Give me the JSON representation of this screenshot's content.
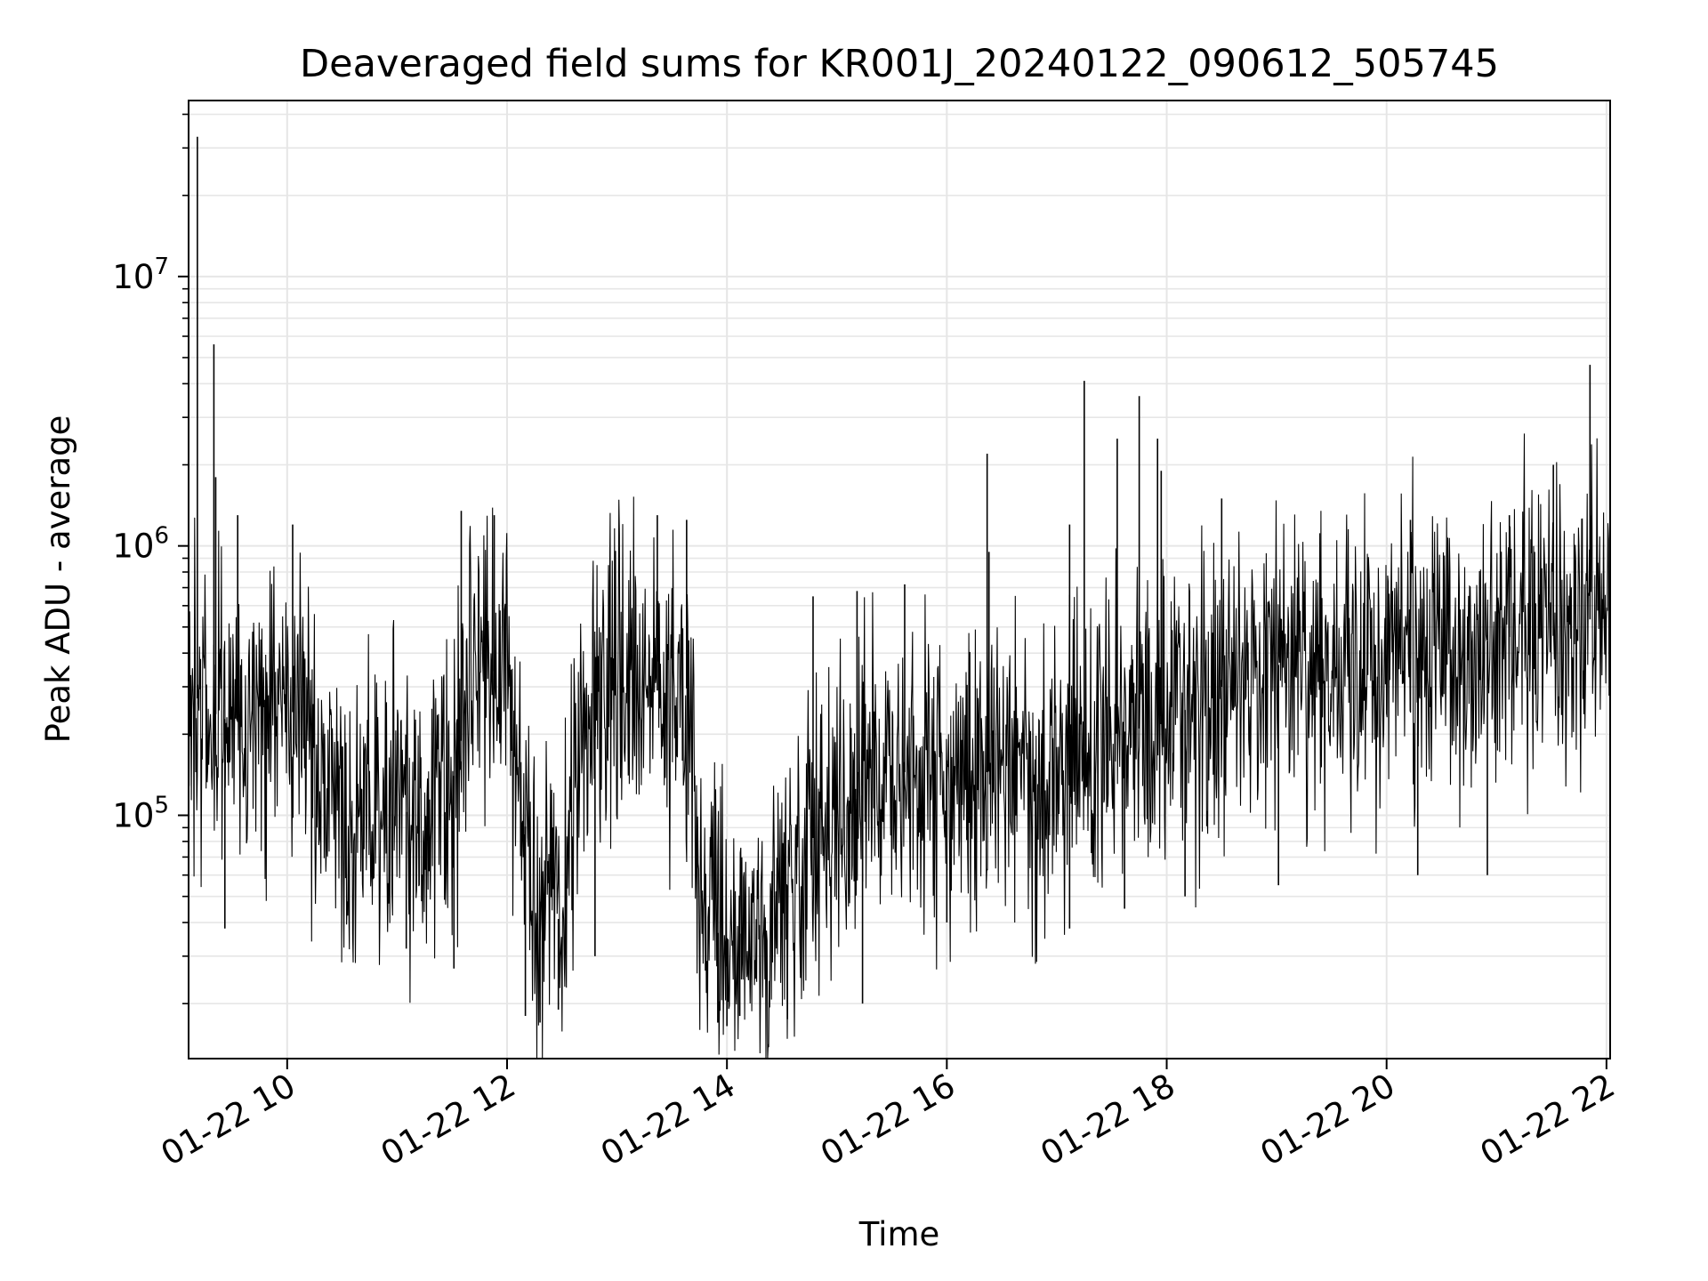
{
  "chart_data": {
    "type": "line",
    "title": "Deaveraged field sums for KR001J_20240122_090612_505745",
    "xlabel": "Time",
    "ylabel": "Peak ADU - average",
    "yscale": "log",
    "grid": true,
    "grid_minor": true,
    "line_color": "#000000",
    "grid_color": "#e6e6e6",
    "xlim": [
      "2024-01-22T09:06:12",
      "2024-01-22T22:02:00"
    ],
    "ylim": [
      12500,
      45000000
    ],
    "x_ticks": [
      {
        "value": "2024-01-22T10:00:00",
        "label": "01-22 10"
      },
      {
        "value": "2024-01-22T12:00:00",
        "label": "01-22 12"
      },
      {
        "value": "2024-01-22T14:00:00",
        "label": "01-22 14"
      },
      {
        "value": "2024-01-22T16:00:00",
        "label": "01-22 16"
      },
      {
        "value": "2024-01-22T18:00:00",
        "label": "01-22 18"
      },
      {
        "value": "2024-01-22T20:00:00",
        "label": "01-22 20"
      },
      {
        "value": "2024-01-22T22:00:00",
        "label": "01-22 22"
      }
    ],
    "y_ticks": [
      {
        "value": 100000,
        "base": "10",
        "exp": "5"
      },
      {
        "value": 1000000,
        "base": "10",
        "exp": "6"
      },
      {
        "value": 10000000,
        "base": "10",
        "exp": "7"
      }
    ],
    "series": [
      {
        "x": [
          "2024-01-22T09:06:12",
          "2024-01-22T09:15:00",
          "2024-01-22T09:30:00",
          "2024-01-22T09:45:00",
          "2024-01-22T10:00:00",
          "2024-01-22T10:15:00",
          "2024-01-22T10:30:00",
          "2024-01-22T10:45:00",
          "2024-01-22T11:00:00",
          "2024-01-22T11:15:00",
          "2024-01-22T11:30:00",
          "2024-01-22T11:45:00",
          "2024-01-22T12:00:00",
          "2024-01-22T12:15:00",
          "2024-01-22T12:30:00",
          "2024-01-22T12:45:00",
          "2024-01-22T13:00:00",
          "2024-01-22T13:15:00",
          "2024-01-22T13:30:00",
          "2024-01-22T13:40:00",
          "2024-01-22T13:45:00",
          "2024-01-22T14:00:00",
          "2024-01-22T14:15:00",
          "2024-01-22T14:30:00",
          "2024-01-22T14:45:00",
          "2024-01-22T15:00:00",
          "2024-01-22T15:15:00",
          "2024-01-22T15:30:00",
          "2024-01-22T15:45:00",
          "2024-01-22T16:00:00",
          "2024-01-22T16:15:00",
          "2024-01-22T16:30:00",
          "2024-01-22T16:45:00",
          "2024-01-22T17:00:00",
          "2024-01-22T17:15:00",
          "2024-01-22T17:30:00",
          "2024-01-22T17:45:00",
          "2024-01-22T18:00:00",
          "2024-01-22T18:15:00",
          "2024-01-22T18:30:00",
          "2024-01-22T18:45:00",
          "2024-01-22T19:00:00",
          "2024-01-22T19:15:00",
          "2024-01-22T19:30:00",
          "2024-01-22T19:45:00",
          "2024-01-22T20:00:00",
          "2024-01-22T20:15:00",
          "2024-01-22T20:30:00",
          "2024-01-22T20:45:00",
          "2024-01-22T21:00:00",
          "2024-01-22T21:15:00",
          "2024-01-22T21:30:00",
          "2024-01-22T21:45:00",
          "2024-01-22T22:02:00"
        ],
        "y": [
          300000,
          250000,
          220000,
          230000,
          260000,
          180000,
          120000,
          130000,
          110000,
          90000,
          130000,
          400000,
          300000,
          50000,
          40000,
          300000,
          350000,
          300000,
          280000,
          300000,
          40000,
          35000,
          38000,
          50000,
          80000,
          100000,
          120000,
          140000,
          150000,
          160000,
          140000,
          150000,
          130000,
          160000,
          180000,
          200000,
          210000,
          220000,
          260000,
          300000,
          340000,
          360000,
          380000,
          370000,
          360000,
          400000,
          380000,
          410000,
          430000,
          450000,
          470000,
          460000,
          520000,
          560000
        ]
      }
    ],
    "spikes": [
      {
        "x": "2024-01-22T09:11:00",
        "y": 33000000
      },
      {
        "x": "2024-01-22T09:20:00",
        "y": 5600000
      },
      {
        "x": "2024-01-22T09:21:00",
        "y": 1800000
      },
      {
        "x": "2024-01-22T09:33:00",
        "y": 1300000
      },
      {
        "x": "2024-01-22T10:03:00",
        "y": 1200000
      },
      {
        "x": "2024-01-22T11:35:00",
        "y": 1350000
      },
      {
        "x": "2024-01-22T11:53:00",
        "y": 1300000
      },
      {
        "x": "2024-01-22T13:22:00",
        "y": 1300000
      },
      {
        "x": "2024-01-22T13:38:00",
        "y": 1250000
      },
      {
        "x": "2024-01-22T14:47:00",
        "y": 650000
      },
      {
        "x": "2024-01-22T15:11:00",
        "y": 680000
      },
      {
        "x": "2024-01-22T15:37:00",
        "y": 720000
      },
      {
        "x": "2024-01-22T16:22:00",
        "y": 2200000
      },
      {
        "x": "2024-01-22T16:23:00",
        "y": 950000
      },
      {
        "x": "2024-01-22T17:07:00",
        "y": 1200000
      },
      {
        "x": "2024-01-22T17:15:00",
        "y": 4100000
      },
      {
        "x": "2024-01-22T17:33:00",
        "y": 2500000
      },
      {
        "x": "2024-01-22T17:45:00",
        "y": 3600000
      },
      {
        "x": "2024-01-22T17:55:00",
        "y": 2500000
      },
      {
        "x": "2024-01-22T17:57:00",
        "y": 1900000
      },
      {
        "x": "2024-01-22T18:30:00",
        "y": 1500000
      },
      {
        "x": "2024-01-22T20:13:00",
        "y": 1250000
      },
      {
        "x": "2024-01-22T21:07:00",
        "y": 1300000
      },
      {
        "x": "2024-01-22T21:31:00",
        "y": 2000000
      },
      {
        "x": "2024-01-22T21:51:00",
        "y": 4700000
      }
    ],
    "dips": [
      {
        "x": "2024-01-22T09:26:00",
        "y": 38000
      },
      {
        "x": "2024-01-22T11:05:00",
        "y": 32000
      },
      {
        "x": "2024-01-22T11:31:00",
        "y": 27000
      },
      {
        "x": "2024-01-22T12:10:00",
        "y": 18000
      },
      {
        "x": "2024-01-22T12:18:00",
        "y": 17000
      },
      {
        "x": "2024-01-22T12:28:00",
        "y": 19000
      },
      {
        "x": "2024-01-22T12:48:00",
        "y": 30000
      },
      {
        "x": "2024-01-22T13:55:00",
        "y": 17000
      },
      {
        "x": "2024-01-22T14:00:00",
        "y": 16500
      },
      {
        "x": "2024-01-22T14:07:00",
        "y": 18000
      },
      {
        "x": "2024-01-22T14:33:00",
        "y": 17500
      },
      {
        "x": "2024-01-22T15:14:00",
        "y": 20000
      },
      {
        "x": "2024-01-22T16:00:00",
        "y": 40000
      },
      {
        "x": "2024-01-22T17:07:00",
        "y": 38000
      },
      {
        "x": "2024-01-22T17:37:00",
        "y": 45000
      },
      {
        "x": "2024-01-22T18:10:00",
        "y": 50000
      },
      {
        "x": "2024-01-22T19:01:00",
        "y": 55000
      },
      {
        "x": "2024-01-22T20:17:00",
        "y": 60000
      },
      {
        "x": "2024-01-22T20:55:00",
        "y": 60000
      }
    ]
  }
}
